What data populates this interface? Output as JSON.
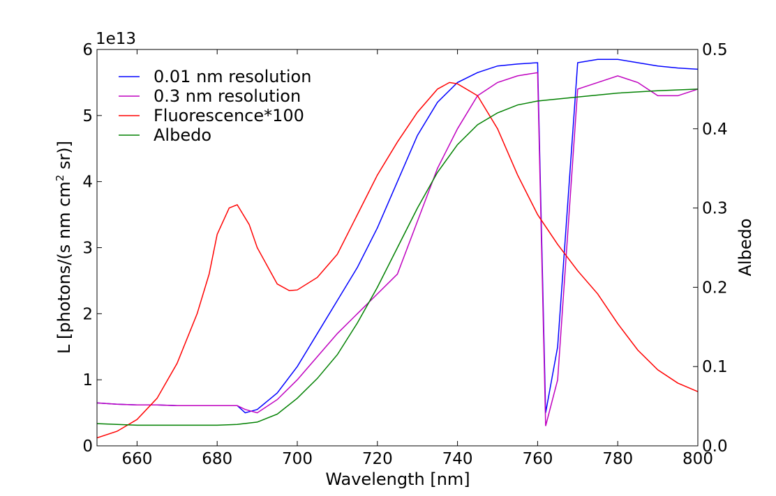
{
  "chart_data": {
    "type": "line",
    "title": "",
    "xlabel": "Wavelength [nm]",
    "ylabel_left": "L [photons/(s nm cm² sr)]",
    "ylabel_left_parts": {
      "main": "L [photons/(s nm cm",
      "sup": "2",
      "tail": " sr)]"
    },
    "ylabel_right": "Albedo",
    "y_left_offset_label": "1e13",
    "xlim": [
      650,
      800
    ],
    "ylim_left": [
      0,
      6
    ],
    "ylim_right": [
      0.0,
      0.5
    ],
    "x_ticks": [
      "660",
      "680",
      "700",
      "720",
      "740",
      "760",
      "780",
      "800"
    ],
    "y_left_ticks": [
      "0",
      "1",
      "2",
      "3",
      "4",
      "5",
      "6"
    ],
    "y_right_ticks": [
      "0.0",
      "0.1",
      "0.2",
      "0.3",
      "0.4",
      "0.5"
    ],
    "grid": false,
    "legend_placement": "top-left",
    "series": [
      {
        "name": "0.01 nm resolution",
        "color": "#0000ff",
        "axis": "left",
        "x": [
          650,
          655,
          660,
          665,
          670,
          675,
          680,
          685,
          687,
          690,
          695,
          700,
          705,
          710,
          715,
          720,
          725,
          730,
          735,
          740,
          745,
          750,
          755,
          760,
          762,
          765,
          770,
          775,
          780,
          785,
          790,
          795,
          800
        ],
        "y": [
          0.65,
          0.63,
          0.62,
          0.62,
          0.61,
          0.61,
          0.61,
          0.61,
          0.5,
          0.55,
          0.8,
          1.2,
          1.7,
          2.2,
          2.7,
          3.3,
          4.0,
          4.7,
          5.2,
          5.5,
          5.65,
          5.75,
          5.78,
          5.8,
          0.5,
          1.5,
          5.8,
          5.85,
          5.85,
          5.8,
          5.75,
          5.72,
          5.7
        ]
      },
      {
        "name": "0.3 nm resolution",
        "color": "#bf00bf",
        "axis": "left",
        "x": [
          650,
          655,
          660,
          665,
          670,
          675,
          680,
          685,
          687,
          690,
          695,
          700,
          705,
          710,
          715,
          720,
          725,
          730,
          735,
          740,
          745,
          750,
          755,
          760,
          762,
          765,
          770,
          775,
          780,
          785,
          790,
          795,
          800
        ],
        "y": [
          0.65,
          0.63,
          0.62,
          0.62,
          0.61,
          0.61,
          0.61,
          0.61,
          0.55,
          0.5,
          0.7,
          1.0,
          1.35,
          1.7,
          2.0,
          2.3,
          2.6,
          3.4,
          4.2,
          4.8,
          5.3,
          5.5,
          5.6,
          5.65,
          0.3,
          1.0,
          5.4,
          5.5,
          5.6,
          5.5,
          5.3,
          5.3,
          5.4
        ]
      },
      {
        "name": "Fluorescence*100",
        "color": "#ff0000",
        "axis": "left",
        "x": [
          650,
          655,
          660,
          665,
          670,
          675,
          678,
          680,
          683,
          685,
          688,
          690,
          695,
          698,
          700,
          705,
          710,
          715,
          720,
          725,
          730,
          735,
          738,
          740,
          745,
          750,
          755,
          760,
          765,
          770,
          775,
          780,
          785,
          790,
          795,
          800
        ],
        "y": [
          0.12,
          0.22,
          0.4,
          0.72,
          1.25,
          2.0,
          2.6,
          3.2,
          3.6,
          3.65,
          3.35,
          3.0,
          2.45,
          2.35,
          2.36,
          2.55,
          2.9,
          3.5,
          4.1,
          4.6,
          5.05,
          5.4,
          5.5,
          5.48,
          5.3,
          4.8,
          4.1,
          3.5,
          3.05,
          2.65,
          2.3,
          1.85,
          1.45,
          1.15,
          0.95,
          0.82
        ]
      },
      {
        "name": "Albedo",
        "color": "#008000",
        "axis": "right",
        "x": [
          650,
          660,
          670,
          680,
          685,
          690,
          695,
          700,
          705,
          710,
          715,
          720,
          725,
          730,
          735,
          740,
          745,
          750,
          755,
          760,
          770,
          780,
          790,
          800
        ],
        "y": [
          0.028,
          0.026,
          0.026,
          0.026,
          0.027,
          0.03,
          0.04,
          0.06,
          0.085,
          0.115,
          0.155,
          0.2,
          0.25,
          0.3,
          0.345,
          0.38,
          0.405,
          0.42,
          0.43,
          0.435,
          0.44,
          0.445,
          0.448,
          0.45
        ]
      }
    ]
  }
}
